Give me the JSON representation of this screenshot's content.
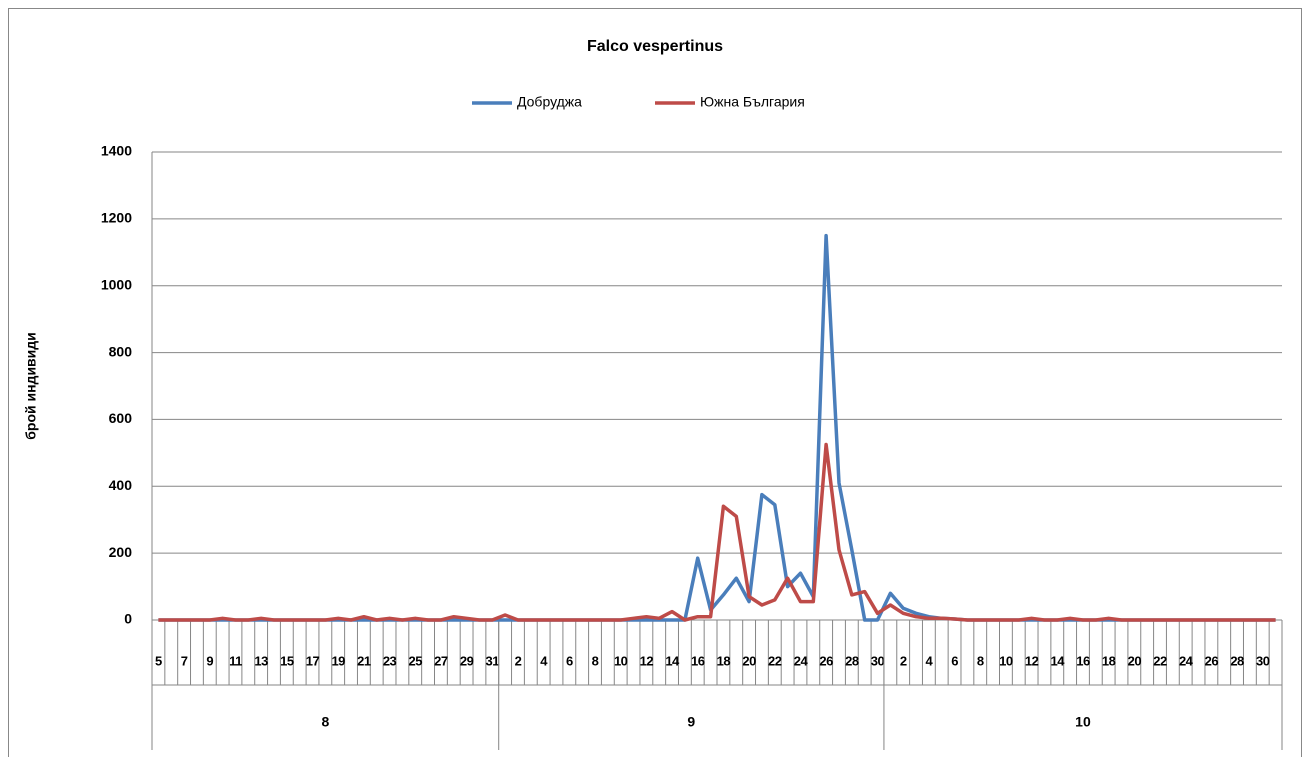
{
  "chart_data": {
    "type": "line",
    "title": "Falco vespertinus",
    "y_label": "брой индивиди",
    "categories": [
      "5",
      null,
      "7",
      null,
      "9",
      null,
      "11",
      null,
      "13",
      null,
      "15",
      null,
      "17",
      null,
      "19",
      null,
      "21",
      null,
      "23",
      null,
      "25",
      null,
      "27",
      null,
      "29",
      null,
      "31",
      null,
      "2",
      null,
      "4",
      null,
      "6",
      null,
      "8",
      null,
      "10",
      null,
      "12",
      null,
      "14",
      null,
      "16",
      null,
      "18",
      null,
      "20",
      null,
      "22",
      null,
      "24",
      null,
      "26",
      null,
      "28",
      null,
      "30",
      null,
      "2",
      null,
      "4",
      null,
      "6",
      null,
      "8",
      null,
      "10",
      null,
      "12",
      null,
      "14",
      null,
      "16",
      null,
      "18",
      null,
      "20",
      null,
      "22",
      null,
      "24",
      null,
      "26",
      null,
      "28",
      null,
      "30",
      null
    ],
    "groups": [
      {
        "label": "8",
        "count": 27
      },
      {
        "label": "9",
        "count": 30
      },
      {
        "label": "10",
        "count": 31
      }
    ],
    "series": [
      {
        "name": "Добруджа",
        "color": "#4a7ebb",
        "values": [
          0,
          0,
          0,
          0,
          0,
          0,
          0,
          0,
          0,
          0,
          0,
          0,
          0,
          0,
          0,
          0,
          0,
          0,
          0,
          0,
          0,
          0,
          0,
          0,
          0,
          0,
          0,
          0,
          0,
          0,
          0,
          0,
          0,
          0,
          0,
          0,
          0,
          0,
          0,
          0,
          0,
          0,
          185,
          30,
          75,
          125,
          55,
          375,
          345,
          100,
          140,
          70,
          1150,
          410,
          210,
          0,
          0,
          80,
          35,
          20,
          10,
          5,
          3,
          0,
          0,
          0,
          0,
          0,
          0,
          0,
          0,
          0,
          0,
          0,
          0,
          0,
          0,
          0,
          0,
          0,
          0,
          0,
          0,
          0,
          0,
          0,
          0,
          0
        ]
      },
      {
        "name": "Южна България",
        "color": "#be4b48",
        "values": [
          0,
          0,
          0,
          0,
          0,
          5,
          0,
          0,
          5,
          0,
          0,
          0,
          0,
          0,
          5,
          0,
          10,
          0,
          5,
          0,
          5,
          0,
          0,
          10,
          5,
          0,
          0,
          15,
          0,
          0,
          0,
          0,
          0,
          0,
          0,
          0,
          0,
          5,
          10,
          5,
          25,
          0,
          10,
          10,
          340,
          310,
          70,
          45,
          60,
          125,
          55,
          55,
          525,
          210,
          75,
          85,
          20,
          45,
          20,
          10,
          5,
          5,
          3,
          0,
          0,
          0,
          0,
          0,
          5,
          0,
          0,
          5,
          0,
          0,
          5,
          0,
          0,
          0,
          0,
          0,
          0,
          0,
          0,
          0,
          0,
          0,
          0,
          0
        ]
      }
    ],
    "ylim": [
      0,
      1400
    ],
    "yticks": [
      0,
      200,
      400,
      600,
      800,
      1000,
      1200,
      1400
    ],
    "grid": true,
    "legend": "top"
  }
}
